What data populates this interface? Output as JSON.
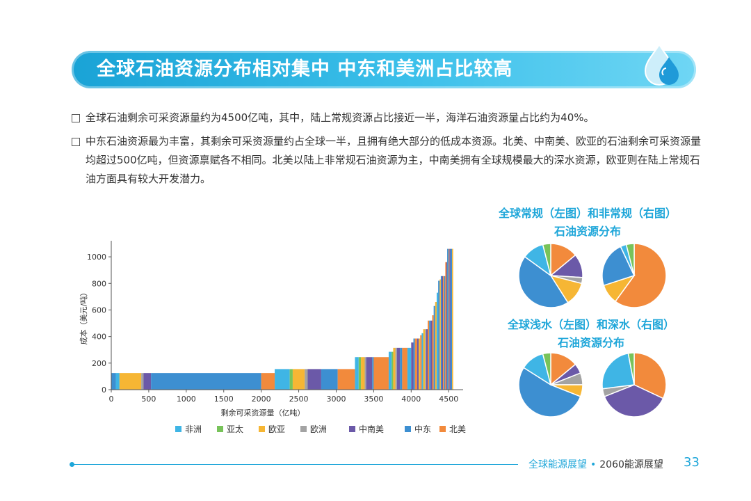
{
  "title": "全球石油资源分布相对集中  中东和美洲占比较高",
  "bullets": [
    "全球石油剩余可采资源量约为4500亿吨，其中，陆上常规资源占比接近一半，海洋石油资源量占比约为40%。",
    "中东石油资源最为丰富，其剩余可采资源量约占全球一半，且拥有绝大部分的低成本资源。北美、中南美、欧亚的石油剩余可采资源量均超过500亿吨，但资源禀赋各不相同。北美以陆上非常规石油资源为主，中南美拥有全球规模最大的深水资源，欧亚则在陆上常规石油方面具有较大开发潜力。"
  ],
  "pie_titles": [
    [
      "全球常规（左图）和非常规（右图）",
      "石油资源分布"
    ],
    [
      "全球浅水（左图）和深水（右图）",
      "石油资源分布"
    ]
  ],
  "footer": {
    "left": "全球能源展望",
    "sep": "•",
    "right": "2060能源展望",
    "page": "33"
  },
  "colors": {
    "非洲": "#3fb5e5",
    "亚太": "#78c35a",
    "欧亚": "#f6b634",
    "欧洲": "#a3a3a3",
    "中南美": "#6b59a8",
    "中东": "#3d8fd1",
    "北美": "#f28a3c"
  },
  "chart_data": [
    {
      "type": "bar",
      "subtype": "cost-supply-step",
      "xlabel": "剩余可采资源量（亿吨）",
      "ylabel": "成本（美元/吨）",
      "xlim": [
        0,
        4600
      ],
      "ylim": [
        0,
        1100
      ],
      "xticks": [
        0,
        500,
        1000,
        1500,
        2000,
        2500,
        3000,
        3500,
        4000,
        4500
      ],
      "yticks": [
        0,
        200,
        400,
        600,
        800,
        1000
      ],
      "legend": [
        "非洲",
        "亚太",
        "欧亚",
        "欧洲",
        "中南美",
        "中东",
        "北美"
      ],
      "segments": [
        {
          "x0": 0,
          "x1": 60,
          "y": 125,
          "region": "中东"
        },
        {
          "x0": 60,
          "x1": 110,
          "y": 125,
          "region": "非洲"
        },
        {
          "x0": 110,
          "x1": 400,
          "y": 125,
          "region": "欧亚"
        },
        {
          "x0": 400,
          "x1": 430,
          "y": 125,
          "region": "欧洲"
        },
        {
          "x0": 430,
          "x1": 530,
          "y": 125,
          "region": "中南美"
        },
        {
          "x0": 530,
          "x1": 2000,
          "y": 125,
          "region": "中东"
        },
        {
          "x0": 2000,
          "x1": 2180,
          "y": 125,
          "region": "北美"
        },
        {
          "x0": 2180,
          "x1": 2380,
          "y": 155,
          "region": "非洲"
        },
        {
          "x0": 2380,
          "x1": 2420,
          "y": 155,
          "region": "亚太"
        },
        {
          "x0": 2420,
          "x1": 2580,
          "y": 155,
          "region": "欧亚"
        },
        {
          "x0": 2580,
          "x1": 2620,
          "y": 155,
          "region": "欧洲"
        },
        {
          "x0": 2620,
          "x1": 2800,
          "y": 155,
          "region": "中南美"
        },
        {
          "x0": 2800,
          "x1": 3020,
          "y": 155,
          "region": "中东"
        },
        {
          "x0": 3020,
          "x1": 3250,
          "y": 155,
          "region": "北美"
        },
        {
          "x0": 3250,
          "x1": 3300,
          "y": 245,
          "region": "非洲"
        },
        {
          "x0": 3300,
          "x1": 3330,
          "y": 245,
          "region": "亚太"
        },
        {
          "x0": 3330,
          "x1": 3380,
          "y": 245,
          "region": "欧亚"
        },
        {
          "x0": 3380,
          "x1": 3400,
          "y": 245,
          "region": "欧洲"
        },
        {
          "x0": 3400,
          "x1": 3480,
          "y": 245,
          "region": "中南美"
        },
        {
          "x0": 3480,
          "x1": 3500,
          "y": 245,
          "region": "中东"
        },
        {
          "x0": 3500,
          "x1": 3700,
          "y": 245,
          "region": "北美"
        },
        {
          "x0": 3700,
          "x1": 3740,
          "y": 285,
          "region": "非洲"
        },
        {
          "x0": 3740,
          "x1": 3760,
          "y": 285,
          "region": "亚太"
        },
        {
          "x0": 3760,
          "x1": 3790,
          "y": 315,
          "region": "欧亚"
        },
        {
          "x0": 3790,
          "x1": 3810,
          "y": 315,
          "region": "欧洲"
        },
        {
          "x0": 3810,
          "x1": 3850,
          "y": 315,
          "region": "中南美"
        },
        {
          "x0": 3850,
          "x1": 3880,
          "y": 315,
          "region": "中东"
        },
        {
          "x0": 3880,
          "x1": 3950,
          "y": 315,
          "region": "北美"
        },
        {
          "x0": 3950,
          "x1": 4000,
          "y": 315,
          "region": "非洲"
        },
        {
          "x0": 4000,
          "x1": 4030,
          "y": 355,
          "region": "中南美"
        },
        {
          "x0": 4030,
          "x1": 4050,
          "y": 385,
          "region": "中东"
        },
        {
          "x0": 4050,
          "x1": 4080,
          "y": 385,
          "region": "北美"
        },
        {
          "x0": 4080,
          "x1": 4100,
          "y": 385,
          "region": "中南美"
        },
        {
          "x0": 4100,
          "x1": 4120,
          "y": 385,
          "region": "欧亚"
        },
        {
          "x0": 4120,
          "x1": 4140,
          "y": 410,
          "region": "北美"
        },
        {
          "x0": 4140,
          "x1": 4160,
          "y": 425,
          "region": "非洲"
        },
        {
          "x0": 4160,
          "x1": 4185,
          "y": 455,
          "region": "欧亚"
        },
        {
          "x0": 4185,
          "x1": 4200,
          "y": 455,
          "region": "欧洲"
        },
        {
          "x0": 4200,
          "x1": 4220,
          "y": 455,
          "region": "中南美"
        },
        {
          "x0": 4220,
          "x1": 4240,
          "y": 520,
          "region": "北美"
        },
        {
          "x0": 4240,
          "x1": 4260,
          "y": 520,
          "region": "中东"
        },
        {
          "x0": 4260,
          "x1": 4280,
          "y": 520,
          "region": "中南美"
        },
        {
          "x0": 4280,
          "x1": 4300,
          "y": 560,
          "region": "北美"
        },
        {
          "x0": 4300,
          "x1": 4320,
          "y": 630,
          "region": "中东"
        },
        {
          "x0": 4320,
          "x1": 4340,
          "y": 660,
          "region": "欧亚"
        },
        {
          "x0": 4340,
          "x1": 4360,
          "y": 730,
          "region": "非洲"
        },
        {
          "x0": 4360,
          "x1": 4380,
          "y": 820,
          "region": "中东"
        },
        {
          "x0": 4380,
          "x1": 4395,
          "y": 830,
          "region": "欧亚"
        },
        {
          "x0": 4395,
          "x1": 4410,
          "y": 855,
          "region": "中东"
        },
        {
          "x0": 4410,
          "x1": 4425,
          "y": 855,
          "region": "中南美"
        },
        {
          "x0": 4425,
          "x1": 4440,
          "y": 855,
          "region": "北美"
        },
        {
          "x0": 4440,
          "x1": 4455,
          "y": 855,
          "region": "中东"
        },
        {
          "x0": 4455,
          "x1": 4470,
          "y": 960,
          "region": "北美"
        },
        {
          "x0": 4470,
          "x1": 4480,
          "y": 960,
          "region": "中南美"
        },
        {
          "x0": 4480,
          "x1": 4500,
          "y": 1060,
          "region": "中东"
        },
        {
          "x0": 4500,
          "x1": 4510,
          "y": 1060,
          "region": "北美"
        },
        {
          "x0": 4510,
          "x1": 4525,
          "y": 1060,
          "region": "中南美"
        },
        {
          "x0": 4525,
          "x1": 4545,
          "y": 1060,
          "region": "中东"
        },
        {
          "x0": 4545,
          "x1": 4560,
          "y": 1060,
          "region": "欧亚"
        }
      ]
    },
    {
      "type": "pie",
      "title": "全球常规石油资源分布",
      "slices": [
        {
          "label": "北美",
          "value": 14
        },
        {
          "label": "中南美",
          "value": 12
        },
        {
          "label": "欧洲",
          "value": 3
        },
        {
          "label": "欧亚",
          "value": 12
        },
        {
          "label": "中东",
          "value": 44
        },
        {
          "label": "非洲",
          "value": 11
        },
        {
          "label": "亚太",
          "value": 4
        }
      ]
    },
    {
      "type": "pie",
      "title": "全球非常规石油资源分布",
      "slices": [
        {
          "label": "北美",
          "value": 60
        },
        {
          "label": "欧亚",
          "value": 10
        },
        {
          "label": "中东",
          "value": 23
        },
        {
          "label": "非洲",
          "value": 3
        },
        {
          "label": "亚太",
          "value": 4
        }
      ]
    },
    {
      "type": "pie",
      "title": "全球浅水石油资源分布",
      "slices": [
        {
          "label": "北美",
          "value": 14
        },
        {
          "label": "中南美",
          "value": 5
        },
        {
          "label": "欧洲",
          "value": 6
        },
        {
          "label": "欧亚",
          "value": 6
        },
        {
          "label": "中东",
          "value": 53
        },
        {
          "label": "非洲",
          "value": 12
        },
        {
          "label": "亚太",
          "value": 4
        }
      ]
    },
    {
      "type": "pie",
      "title": "全球深水石油资源分布",
      "slices": [
        {
          "label": "北美",
          "value": 32
        },
        {
          "label": "中南美",
          "value": 37
        },
        {
          "label": "欧洲",
          "value": 4
        },
        {
          "label": "非洲",
          "value": 24
        },
        {
          "label": "亚太",
          "value": 3
        }
      ]
    }
  ]
}
